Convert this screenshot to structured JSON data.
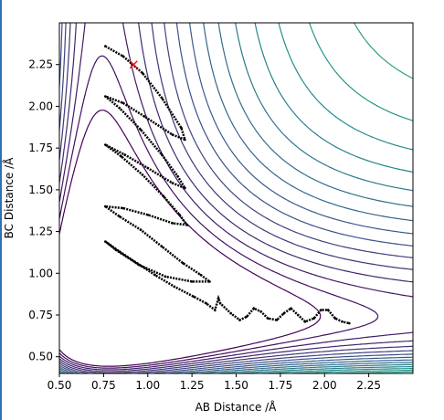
{
  "chart_data": {
    "type": "contour",
    "xlabel": "AB Distance /Å",
    "ylabel": "BC Distance /Å",
    "xlim": [
      0.5,
      2.5
    ],
    "ylim": [
      0.4,
      2.5
    ],
    "x_ticks": [
      "0.50",
      "0.75",
      "1.00",
      "1.25",
      "1.50",
      "1.75",
      "2.00",
      "2.25"
    ],
    "y_ticks": [
      "0.50",
      "0.75",
      "1.00",
      "1.25",
      "1.50",
      "1.75",
      "2.00",
      "2.25"
    ],
    "x_tick_values": [
      0.5,
      0.75,
      1.0,
      1.25,
      1.5,
      1.75,
      2.0,
      2.25
    ],
    "y_tick_values": [
      0.5,
      0.75,
      1.0,
      1.25,
      1.5,
      1.75,
      2.0,
      2.25
    ],
    "colormap": "viridis",
    "colormap_stops": [
      "#440154",
      "#3b528b",
      "#21918c",
      "#5ec962",
      "#fde725"
    ],
    "grid": false,
    "start_marker": {
      "x": 0.92,
      "y": 2.25,
      "symbol": "x",
      "color": "#ff0000"
    },
    "trajectory": [
      [
        0.76,
        2.36
      ],
      [
        0.86,
        2.3
      ],
      [
        0.97,
        2.2
      ],
      [
        1.08,
        2.05
      ],
      [
        1.19,
        1.87
      ],
      [
        1.21,
        1.8
      ],
      [
        1.14,
        1.83
      ],
      [
        0.98,
        1.94
      ],
      [
        0.86,
        2.02
      ],
      [
        0.76,
        2.06
      ],
      [
        0.84,
        1.99
      ],
      [
        0.96,
        1.86
      ],
      [
        1.08,
        1.71
      ],
      [
        1.17,
        1.58
      ],
      [
        1.21,
        1.51
      ],
      [
        1.14,
        1.54
      ],
      [
        1.0,
        1.63
      ],
      [
        0.87,
        1.71
      ],
      [
        0.76,
        1.77
      ],
      [
        0.85,
        1.7
      ],
      [
        0.97,
        1.59
      ],
      [
        1.09,
        1.46
      ],
      [
        1.18,
        1.35
      ],
      [
        1.22,
        1.29
      ],
      [
        1.14,
        1.3
      ],
      [
        1.0,
        1.35
      ],
      [
        0.86,
        1.39
      ],
      [
        0.76,
        1.4
      ],
      [
        0.84,
        1.34
      ],
      [
        0.96,
        1.26
      ],
      [
        1.08,
        1.16
      ],
      [
        1.2,
        1.06
      ],
      [
        1.3,
        0.99
      ],
      [
        1.35,
        0.95
      ],
      [
        1.25,
        0.95
      ],
      [
        1.1,
        0.98
      ],
      [
        0.95,
        1.05
      ],
      [
        0.82,
        1.14
      ],
      [
        0.76,
        1.19
      ],
      [
        0.84,
        1.13
      ],
      [
        0.94,
        1.06
      ],
      [
        1.04,
        0.99
      ],
      [
        1.15,
        0.92
      ],
      [
        1.26,
        0.86
      ],
      [
        1.33,
        0.82
      ],
      [
        1.38,
        0.78
      ],
      [
        1.4,
        0.85
      ],
      [
        1.41,
        0.82
      ],
      [
        1.47,
        0.76
      ],
      [
        1.52,
        0.72
      ],
      [
        1.56,
        0.74
      ],
      [
        1.6,
        0.79
      ],
      [
        1.64,
        0.77
      ],
      [
        1.68,
        0.73
      ],
      [
        1.73,
        0.72
      ],
      [
        1.77,
        0.76
      ],
      [
        1.81,
        0.79
      ],
      [
        1.85,
        0.75
      ],
      [
        1.89,
        0.71
      ],
      [
        1.94,
        0.73
      ],
      [
        1.98,
        0.78
      ],
      [
        2.02,
        0.78
      ],
      [
        2.06,
        0.73
      ],
      [
        2.1,
        0.71
      ],
      [
        2.14,
        0.7
      ]
    ]
  }
}
